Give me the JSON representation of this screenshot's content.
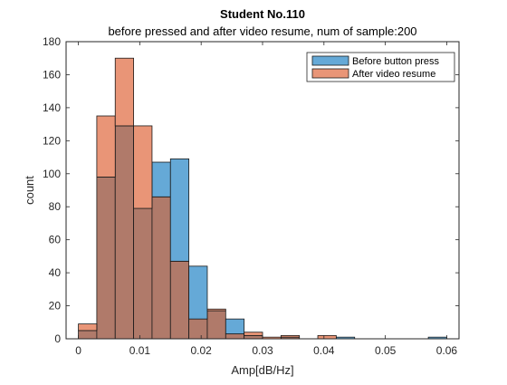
{
  "chart_data": {
    "type": "bar",
    "title": "Student No.110",
    "subtitle": "before pressed and after video resume, num of sample:200",
    "xlabel": "Amp[dB/Hz]",
    "ylabel": "count",
    "xlim": [
      -0.002,
      0.062
    ],
    "ylim": [
      0,
      180
    ],
    "x_ticks": [
      "0",
      "0.01",
      "0.02",
      "0.03",
      "0.04",
      "0.05",
      "0.06"
    ],
    "x_tick_values": [
      0,
      0.01,
      0.02,
      0.03,
      0.04,
      0.05,
      0.06
    ],
    "y_ticks": [
      "0",
      "20",
      "40",
      "60",
      "80",
      "100",
      "120",
      "140",
      "160",
      "180"
    ],
    "y_tick_values": [
      0,
      20,
      40,
      60,
      80,
      100,
      120,
      140,
      160,
      180
    ],
    "bin_edges": [
      0,
      0.003,
      0.006,
      0.009,
      0.012,
      0.015,
      0.018,
      0.021,
      0.024,
      0.027,
      0.03,
      0.033,
      0.036,
      0.039,
      0.042,
      0.045,
      0.048,
      0.051,
      0.054,
      0.057,
      0.06,
      0.063
    ],
    "grid": false,
    "legend_position": "top-right",
    "overlap_color": "#b07a6a",
    "series": [
      {
        "name": "Before button press",
        "color": "#65a9d7",
        "values": [
          5,
          98,
          129,
          79,
          107,
          109,
          44,
          17,
          12,
          2,
          0,
          1,
          0,
          0,
          1,
          0,
          0,
          0,
          0,
          1,
          0
        ]
      },
      {
        "name": "After video resume",
        "color": "#e99577",
        "values": [
          9,
          135,
          170,
          129,
          86,
          47,
          12,
          18,
          3,
          4,
          1,
          2,
          0,
          2,
          0,
          0,
          0,
          0,
          0,
          0,
          0
        ]
      }
    ]
  }
}
